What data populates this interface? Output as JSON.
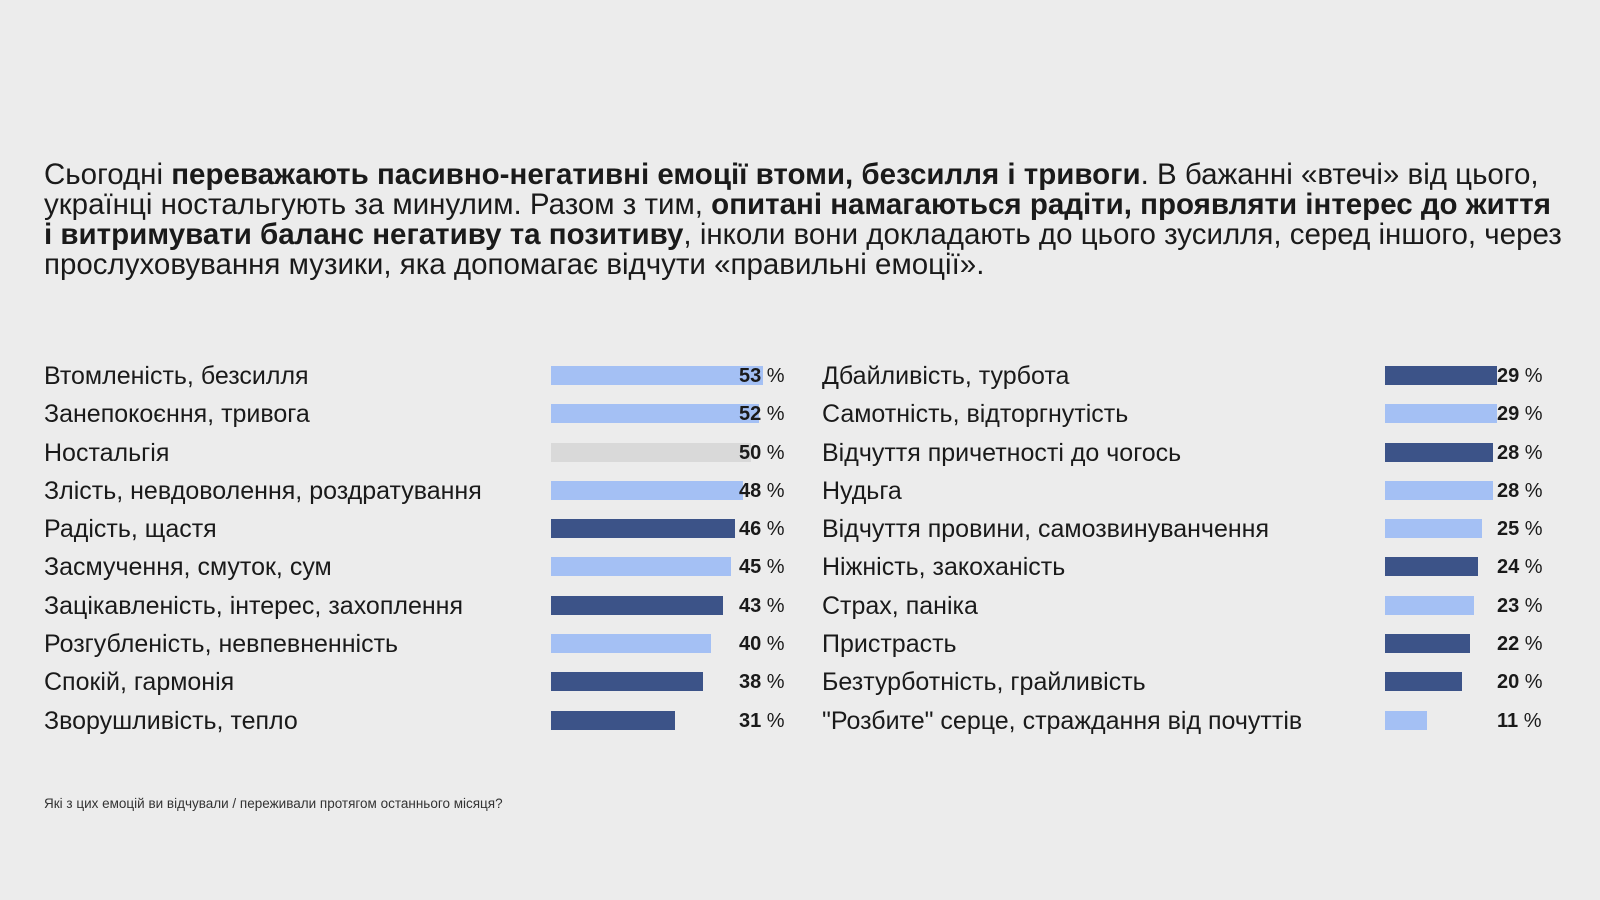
{
  "intro": {
    "s1": "Сьогодні ",
    "b1": "переважають пасивно-негативні емоції втоми, безсилля і тривоги",
    "s2": ". В бажанні «втечі» від цього, українці ностальгують за минулим. Разом з тим, ",
    "b2": "опитані намагаються радіти, проявляти інтерес до життя і витримувати баланс негативу та позитиву",
    "s3": ", інколи вони докладають до цього зусилля, серед іншого, через прослуховування музики, яка допомагає відчути «правильні емоції»."
  },
  "colors": {
    "light": "#a4c0f4",
    "dark": "#3c5388",
    "neutral": "#d9d9d9"
  },
  "chart_data": [
    {
      "type": "bar",
      "unit": "%",
      "categories": [
        "Втомленість, безсилля",
        "Занепокоєння, тривога",
        "Ностальгія",
        "Злість, невдоволення, роздратування",
        "Радість, щастя",
        "Засмучення, смуток, сум",
        "Зацікавленість, інтерес, захоплення",
        "Розгубленість, невпевненність",
        "Спокій, гармонія",
        "Зворушливість, тепло"
      ],
      "values": [
        53,
        52,
        50,
        48,
        46,
        45,
        43,
        40,
        38,
        31
      ],
      "colors": [
        "light",
        "light",
        "neutral",
        "light",
        "dark",
        "light",
        "dark",
        "light",
        "dark",
        "dark"
      ]
    },
    {
      "type": "bar",
      "unit": "%",
      "categories": [
        "Дбайливість, турбота",
        "Самотність, відторгнутість",
        "Відчуття причетності до чогось",
        "Нудьга",
        "Відчуття провини, самозвинуванчення",
        "Ніжність, закоханість",
        "Страх, паніка",
        "Пристрасть",
        "Безтурботність, грайливість",
        "\"Розбите\" серце, страждання від почуттів"
      ],
      "values": [
        29,
        29,
        28,
        28,
        25,
        24,
        23,
        22,
        20,
        11
      ],
      "colors": [
        "dark",
        "light",
        "dark",
        "light",
        "light",
        "dark",
        "light",
        "dark",
        "dark",
        "light"
      ]
    }
  ],
  "footnote": "Які з цих емоцій ви відчували / переживали протягом останнього місяця?"
}
